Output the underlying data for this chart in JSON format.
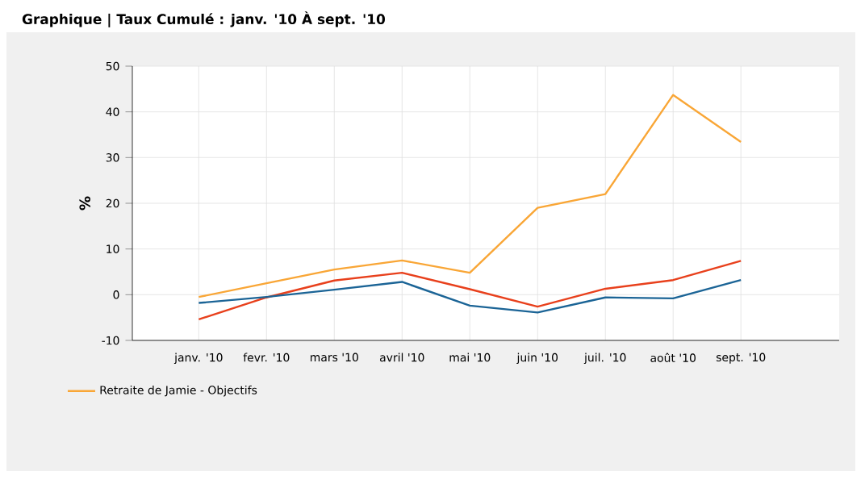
{
  "chart_data": {
    "type": "line",
    "title": "Graphique | Taux Cumulé : janv. '10 À sept. '10",
    "ylabel": "%",
    "categories": [
      "janv. '10",
      "fevr. '10",
      "mars '10",
      "avril '10",
      "mai '10",
      "juin '10",
      "juil. '10",
      "août '10",
      "sept. '10"
    ],
    "series": [
      {
        "name": "Retraite de Jamie - Objectifs",
        "color": "#f9a636",
        "values": [
          -0.5,
          2.5,
          5.5,
          7.5,
          4.8,
          19,
          22,
          43.7,
          33.4
        ]
      },
      {
        "color": "#e8401c",
        "values": [
          -5.4,
          -0.6,
          3.1,
          4.8,
          1.2,
          -2.6,
          1.3,
          3.2,
          7.4
        ]
      },
      {
        "color": "#1b6496",
        "values": [
          -1.8,
          -0.5,
          1.1,
          2.8,
          -2.4,
          -3.9,
          -0.6,
          -0.8,
          3.2
        ]
      }
    ],
    "ylim": [
      -10,
      50
    ],
    "yticks": [
      -10,
      0,
      10,
      20,
      30,
      40,
      50
    ],
    "grid": true,
    "legend": "bottom left",
    "marker": "none",
    "line_style": "solid"
  }
}
